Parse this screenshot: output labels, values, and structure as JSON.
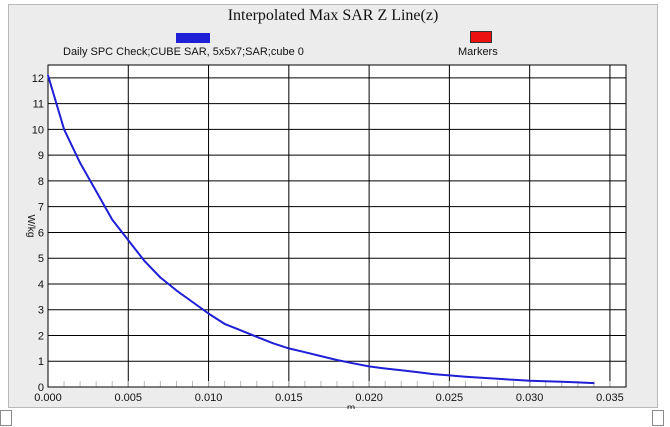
{
  "chart_data": {
    "type": "line",
    "title": "Interpolated Max SAR Z Line(z)",
    "xlabel": "m",
    "ylabel": "W/kg",
    "xlim": [
      0,
      0.036
    ],
    "ylim": [
      0,
      12.5
    ],
    "x_ticks": [
      0,
      0.005,
      0.01,
      0.015,
      0.02,
      0.025,
      0.03,
      0.035
    ],
    "x_tick_labels": [
      "0.000",
      "0.005",
      "0.010",
      "0.015",
      "0.020",
      "0.025",
      "0.030",
      "0.035"
    ],
    "y_ticks": [
      0,
      1,
      2,
      3,
      4,
      5,
      6,
      7,
      8,
      9,
      10,
      11,
      12
    ],
    "y_tick_labels": [
      "0",
      "1",
      "2",
      "3",
      "4",
      "5",
      "6",
      "7",
      "8",
      "9",
      "10",
      "11",
      "12"
    ],
    "grid": true,
    "legend_position": "top",
    "series": [
      {
        "name": "Daily SPC Check;CUBE SAR, 5x5x7;SAR;cube 0",
        "color": "#1f1fd6",
        "x": [
          0,
          0.001,
          0.002,
          0.003,
          0.004,
          0.005,
          0.006,
          0.007,
          0.008,
          0.009,
          0.01,
          0.011,
          0.012,
          0.013,
          0.014,
          0.015,
          0.016,
          0.017,
          0.018,
          0.019,
          0.02,
          0.021,
          0.022,
          0.023,
          0.024,
          0.025,
          0.026,
          0.027,
          0.028,
          0.029,
          0.03,
          0.031,
          0.032,
          0.033,
          0.034
        ],
        "y": [
          12.1,
          10.0,
          8.7,
          7.6,
          6.5,
          5.7,
          4.9,
          4.25,
          3.75,
          3.3,
          2.85,
          2.45,
          2.2,
          1.95,
          1.7,
          1.5,
          1.35,
          1.2,
          1.05,
          0.92,
          0.8,
          0.72,
          0.65,
          0.58,
          0.5,
          0.45,
          0.4,
          0.36,
          0.32,
          0.28,
          0.24,
          0.22,
          0.2,
          0.18,
          0.15
        ]
      },
      {
        "name": "Markers",
        "color": "#ee1111",
        "x": [],
        "y": []
      }
    ]
  }
}
